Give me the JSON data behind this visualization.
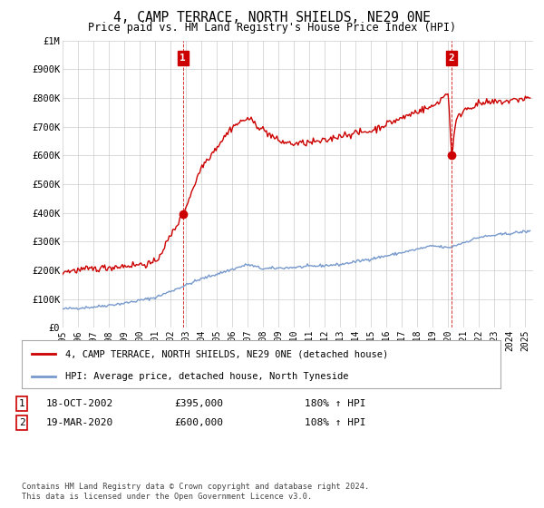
{
  "title": "4, CAMP TERRACE, NORTH SHIELDS, NE29 0NE",
  "subtitle": "Price paid vs. HM Land Registry's House Price Index (HPI)",
  "red_label": "4, CAMP TERRACE, NORTH SHIELDS, NE29 0NE (detached house)",
  "blue_label": "HPI: Average price, detached house, North Tyneside",
  "annotation1_label": "1",
  "annotation1_date": "18-OCT-2002",
  "annotation1_price": "£395,000",
  "annotation1_hpi": "180% ↑ HPI",
  "annotation2_label": "2",
  "annotation2_date": "19-MAR-2020",
  "annotation2_price": "£600,000",
  "annotation2_hpi": "108% ↑ HPI",
  "footnote1": "Contains HM Land Registry data © Crown copyright and database right 2024.",
  "footnote2": "This data is licensed under the Open Government Licence v3.0.",
  "sale1_year": 2002.8,
  "sale1_value": 395000,
  "sale2_year": 2020.22,
  "sale2_value": 600000,
  "ylim": [
    0,
    1000000
  ],
  "xlim_start": 1995,
  "xlim_end": 2025.5,
  "red_color": "#cc0000",
  "blue_color": "#7799cc",
  "annotation_box_color": "#cc0000",
  "grid_color": "#cccccc",
  "bg_color": "#ffffff",
  "hpi_anchors_x": [
    1995,
    1997,
    1999,
    2001,
    2004,
    2007,
    2008,
    2010,
    2013,
    2016,
    2019,
    2020,
    2022,
    2025
  ],
  "hpi_anchors_y": [
    65000,
    72000,
    85000,
    105000,
    170000,
    220000,
    205000,
    210000,
    220000,
    250000,
    285000,
    278000,
    315000,
    335000
  ],
  "red_anchors_x": [
    1995,
    1997,
    1999,
    2001,
    2002.8,
    2004,
    2006,
    2007,
    2008,
    2009,
    2010,
    2012,
    2013,
    2015,
    2016,
    2017,
    2018,
    2019,
    2020.0,
    2020.22,
    2020.5,
    2021,
    2022,
    2023,
    2024,
    2025
  ],
  "red_anchors_y": [
    195000,
    205000,
    215000,
    225000,
    395000,
    560000,
    700000,
    730000,
    690000,
    650000,
    640000,
    650000,
    670000,
    685000,
    710000,
    730000,
    755000,
    770000,
    820000,
    600000,
    720000,
    760000,
    780000,
    785000,
    790000,
    800000
  ]
}
